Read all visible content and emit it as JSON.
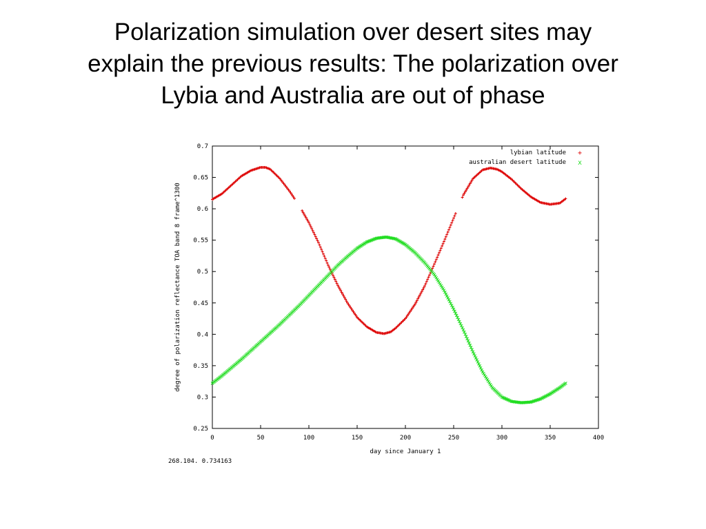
{
  "slide": {
    "title_lines": [
      "Polarization simulation over desert sites may",
      "explain the previous results: The polarization over",
      "Lybia and Australia are out of phase"
    ]
  },
  "chart_data": {
    "type": "scatter",
    "title": "",
    "xlabel": "day since January 1",
    "ylabel": "degree of polarization reflectance TOA band 8 frame^1300",
    "xlim": [
      0,
      400
    ],
    "ylim": [
      0.25,
      0.7
    ],
    "x_ticks": [
      "0",
      "50",
      "100",
      "150",
      "200",
      "250",
      "300",
      "350",
      "400"
    ],
    "y_ticks": [
      "0.25",
      "0.3",
      "0.35",
      "0.4",
      "0.45",
      "0.5",
      "0.55",
      "0.6",
      "0.65",
      "0.7"
    ],
    "grid": false,
    "legend_position": "top-right",
    "status_readout": "268.104.  0.734163",
    "series": [
      {
        "name": "lybian latitude",
        "marker": "+",
        "color": "#dd0000",
        "gaps": [
          [
            86,
            92
          ],
          [
            253,
            258
          ]
        ],
        "x": [
          0,
          10,
          20,
          30,
          40,
          50,
          55,
          60,
          70,
          80,
          90,
          100,
          110,
          120,
          130,
          140,
          150,
          160,
          170,
          178,
          185,
          190,
          200,
          210,
          220,
          230,
          240,
          250,
          260,
          270,
          280,
          288,
          295,
          300,
          310,
          320,
          330,
          340,
          350,
          360,
          366
        ],
        "y": [
          0.615,
          0.624,
          0.638,
          0.652,
          0.661,
          0.666,
          0.666,
          0.663,
          0.648,
          0.628,
          0.605,
          0.578,
          0.546,
          0.51,
          0.478,
          0.45,
          0.427,
          0.412,
          0.403,
          0.401,
          0.404,
          0.41,
          0.425,
          0.448,
          0.477,
          0.512,
          0.548,
          0.585,
          0.622,
          0.648,
          0.662,
          0.665,
          0.663,
          0.659,
          0.647,
          0.632,
          0.619,
          0.61,
          0.607,
          0.609,
          0.616
        ]
      },
      {
        "name": "australian desert latitude",
        "marker": "x",
        "color": "#22dd22",
        "x": [
          0,
          10,
          20,
          30,
          40,
          50,
          60,
          70,
          80,
          90,
          100,
          110,
          120,
          130,
          140,
          150,
          160,
          170,
          180,
          190,
          200,
          210,
          220,
          230,
          240,
          250,
          260,
          270,
          280,
          290,
          300,
          310,
          320,
          330,
          340,
          350,
          360,
          366
        ],
        "y": [
          0.322,
          0.334,
          0.347,
          0.36,
          0.374,
          0.388,
          0.402,
          0.416,
          0.431,
          0.446,
          0.462,
          0.478,
          0.494,
          0.51,
          0.524,
          0.537,
          0.547,
          0.553,
          0.555,
          0.552,
          0.543,
          0.53,
          0.514,
          0.495,
          0.47,
          0.44,
          0.407,
          0.372,
          0.34,
          0.315,
          0.3,
          0.293,
          0.291,
          0.292,
          0.297,
          0.305,
          0.315,
          0.322
        ]
      }
    ]
  }
}
